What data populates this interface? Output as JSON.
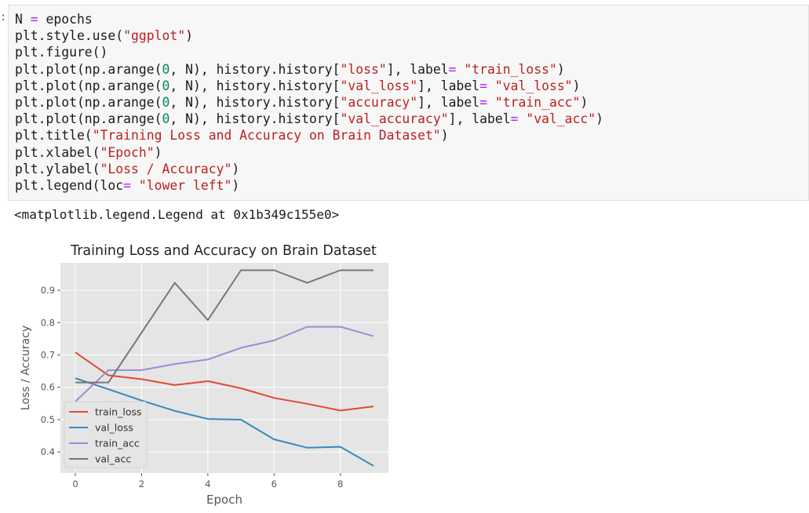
{
  "prompt_marker": ":",
  "code_cell": {
    "lines": [
      [
        {
          "t": "N "
        },
        {
          "t": "=",
          "c": "op"
        },
        {
          "t": " epochs"
        }
      ],
      [
        {
          "t": "plt.style.use("
        },
        {
          "t": "\"ggplot\"",
          "c": "str"
        },
        {
          "t": ")"
        }
      ],
      [
        {
          "t": "plt.figure()"
        }
      ],
      [
        {
          "t": "plt.plot(np.arange("
        },
        {
          "t": "0",
          "c": "num"
        },
        {
          "t": ", N), history.history["
        },
        {
          "t": "\"loss\"",
          "c": "str"
        },
        {
          "t": "], label"
        },
        {
          "t": "=",
          "c": "op"
        },
        {
          "t": " "
        },
        {
          "t": "\"train_loss\"",
          "c": "str"
        },
        {
          "t": ")"
        }
      ],
      [
        {
          "t": "plt.plot(np.arange("
        },
        {
          "t": "0",
          "c": "num"
        },
        {
          "t": ", N), history.history["
        },
        {
          "t": "\"val_loss\"",
          "c": "str"
        },
        {
          "t": "], label"
        },
        {
          "t": "=",
          "c": "op"
        },
        {
          "t": " "
        },
        {
          "t": "\"val_loss\"",
          "c": "str"
        },
        {
          "t": ")"
        }
      ],
      [
        {
          "t": "plt.plot(np.arange("
        },
        {
          "t": "0",
          "c": "num"
        },
        {
          "t": ", N), history.history["
        },
        {
          "t": "\"accuracy\"",
          "c": "str"
        },
        {
          "t": "], label"
        },
        {
          "t": "=",
          "c": "op"
        },
        {
          "t": " "
        },
        {
          "t": "\"train_acc\"",
          "c": "str"
        },
        {
          "t": ")"
        }
      ],
      [
        {
          "t": "plt.plot(np.arange("
        },
        {
          "t": "0",
          "c": "num"
        },
        {
          "t": ", N), history.history["
        },
        {
          "t": "\"val_accuracy\"",
          "c": "str"
        },
        {
          "t": "], label"
        },
        {
          "t": "=",
          "c": "op"
        },
        {
          "t": " "
        },
        {
          "t": "\"val_acc\"",
          "c": "str"
        },
        {
          "t": ")"
        }
      ],
      [
        {
          "t": "plt.title("
        },
        {
          "t": "\"Training Loss and Accuracy on Brain Dataset\"",
          "c": "str"
        },
        {
          "t": ")"
        }
      ],
      [
        {
          "t": "plt.xlabel("
        },
        {
          "t": "\"Epoch\"",
          "c": "str"
        },
        {
          "t": ")"
        }
      ],
      [
        {
          "t": "plt.ylabel("
        },
        {
          "t": "\"Loss / Accuracy\"",
          "c": "str"
        },
        {
          "t": ")"
        }
      ],
      [
        {
          "t": "plt.legend(loc"
        },
        {
          "t": "=",
          "c": "op"
        },
        {
          "t": " "
        },
        {
          "t": "\"lower left\"",
          "c": "str"
        },
        {
          "t": ")"
        }
      ]
    ]
  },
  "output_text": "<matplotlib.legend.Legend at 0x1b349c155e0>",
  "colors": {
    "plot_bg": "#e5e5e5",
    "grid": "#ffffff",
    "tick_text": "#555555"
  },
  "chart_data": {
    "type": "line",
    "title": "Training Loss and Accuracy on Brain Dataset",
    "xlabel": "Epoch",
    "ylabel": "Loss / Accuracy",
    "xlim": [
      -0.45,
      9.45
    ],
    "ylim": [
      0.335,
      0.985
    ],
    "xticks": [
      0,
      2,
      4,
      6,
      8
    ],
    "yticks": [
      0.4,
      0.5,
      0.6,
      0.7,
      0.8,
      0.9
    ],
    "legend_position": "lower left",
    "grid": true,
    "x": [
      0,
      1,
      2,
      3,
      4,
      5,
      6,
      7,
      8,
      9
    ],
    "series": [
      {
        "name": "train_loss",
        "color": "#e24a33",
        "values": [
          0.708,
          0.637,
          0.625,
          0.607,
          0.619,
          0.597,
          0.567,
          0.549,
          0.528,
          0.541
        ]
      },
      {
        "name": "val_loss",
        "color": "#348abd",
        "values": [
          0.628,
          0.594,
          0.559,
          0.527,
          0.502,
          0.5,
          0.439,
          0.413,
          0.416,
          0.357
        ]
      },
      {
        "name": "train_acc",
        "color": "#988ed5",
        "values": [
          0.556,
          0.653,
          0.653,
          0.672,
          0.686,
          0.722,
          0.745,
          0.787,
          0.787,
          0.758
        ]
      },
      {
        "name": "val_acc",
        "color": "#777777",
        "values": [
          0.615,
          0.615,
          0.769,
          0.923,
          0.808,
          0.962,
          0.962,
          0.923,
          0.962,
          0.962
        ]
      }
    ]
  }
}
